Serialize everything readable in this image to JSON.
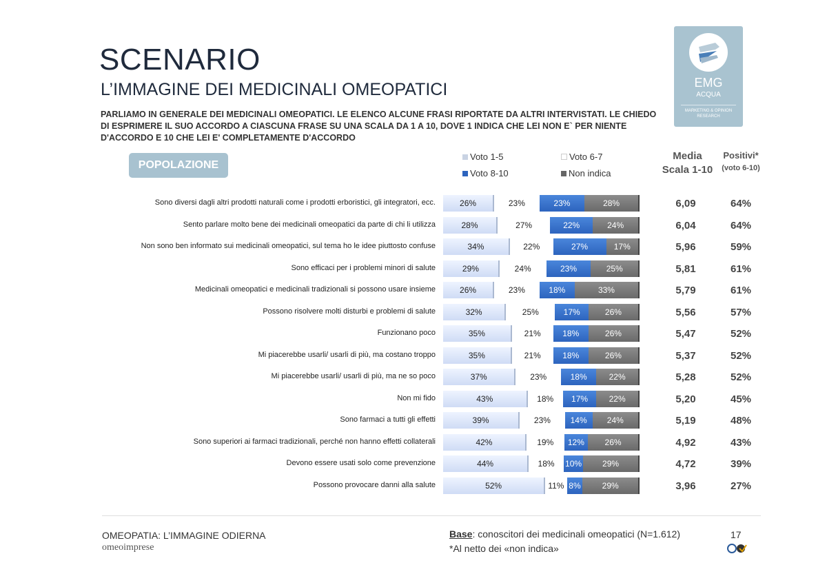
{
  "header": {
    "title": "SCENARIO",
    "subtitle": "L’IMMAGINE DEI MEDICINALI OMEOPATICI",
    "question": "PARLIAMO IN GENERALE DEI MEDICINALI OMEOPATICI. LE ELENCO ALCUNE FRASI RIPORTATE DA ALTRI INTERVISTATI. LE CHIEDO DI ESPRIMERE IL SUO ACCORDO A CIASCUNA FRASE SU UNA SCALA DA 1 A 10, DOVE 1 INDICA CHE LEI NON E` PER NIENTE D'ACCORDO E 10 CHE LEI E' COMPLETAMENTE D'ACCORDO"
  },
  "logo": {
    "name": "EMG",
    "sub": "ACQUA",
    "tagline": "MARKETING & OPINION RESEARCH"
  },
  "segment_badge": "POPOLAZIONE",
  "columns": {
    "media_title": "Media",
    "media_sub": "Scala 1-10",
    "pos_title": "Positivi*",
    "pos_sub": "(voto 6-10)"
  },
  "chart_data": {
    "type": "bar",
    "orientation": "horizontal",
    "stacked": true,
    "legend": "top",
    "series": [
      {
        "name": "Voto 1-5",
        "color": "#dce6f7",
        "values": [
          26,
          28,
          34,
          29,
          26,
          32,
          35,
          35,
          37,
          43,
          39,
          42,
          44,
          52
        ]
      },
      {
        "name": "Voto 6-7",
        "color": "#ffffff",
        "values": [
          23,
          27,
          22,
          24,
          23,
          25,
          21,
          21,
          23,
          18,
          23,
          19,
          18,
          11
        ]
      },
      {
        "name": "Voto 8-10",
        "color": "#3a74cc",
        "values": [
          23,
          22,
          27,
          23,
          18,
          17,
          18,
          18,
          18,
          17,
          14,
          12,
          10,
          8
        ]
      },
      {
        "name": "Non indica",
        "color": "#7a7a7a",
        "values": [
          28,
          24,
          17,
          25,
          33,
          26,
          26,
          26,
          22,
          22,
          24,
          26,
          29,
          29
        ]
      }
    ],
    "categories": [
      "Sono diversi dagli altri prodotti naturali come i prodotti erboristici, gli integratori, ecc.",
      "Sento parlare molto bene dei medicinali omeopatici da parte di chi li utilizza",
      "Non sono ben informato sui medicinali omeopatici, sul tema ho le idee piuttosto confuse",
      "Sono efficaci per i problemi minori di salute",
      "Medicinali omeopatici e medicinali tradizionali si possono usare insieme",
      "Possono risolvere molti disturbi e problemi di salute",
      "Funzionano poco",
      "Mi piacerebbe usarli/ usarli di più, ma costano troppo",
      "Mi piacerebbe usarli/ usarli di più, ma ne so poco",
      "Non mi fido",
      "Sono farmaci a tutti gli effetti",
      "Sono superiori ai farmaci tradizionali, perché non hanno effetti collaterali",
      "Devono essere usati solo come prevenzione",
      "Possono provocare danni alla salute"
    ],
    "media": [
      "6,09",
      "6,04",
      "5,96",
      "5,81",
      "5,79",
      "5,56",
      "5,47",
      "5,37",
      "5,28",
      "5,20",
      "5,19",
      "4,92",
      "4,72",
      "3,96"
    ],
    "positivi": [
      "64%",
      "64%",
      "59%",
      "61%",
      "61%",
      "57%",
      "52%",
      "52%",
      "52%",
      "45%",
      "48%",
      "43%",
      "39%",
      "27%"
    ]
  },
  "footer": {
    "left_title": "OMEOPATIA: L’IMMAGINE ODIERNA",
    "brand": "omeoimprese",
    "base_label": "Base",
    "base_text": ": conoscitori dei medicinali omeopatici (N=1.612)",
    "note": "*Al netto dei «non indica»",
    "page": "17"
  }
}
